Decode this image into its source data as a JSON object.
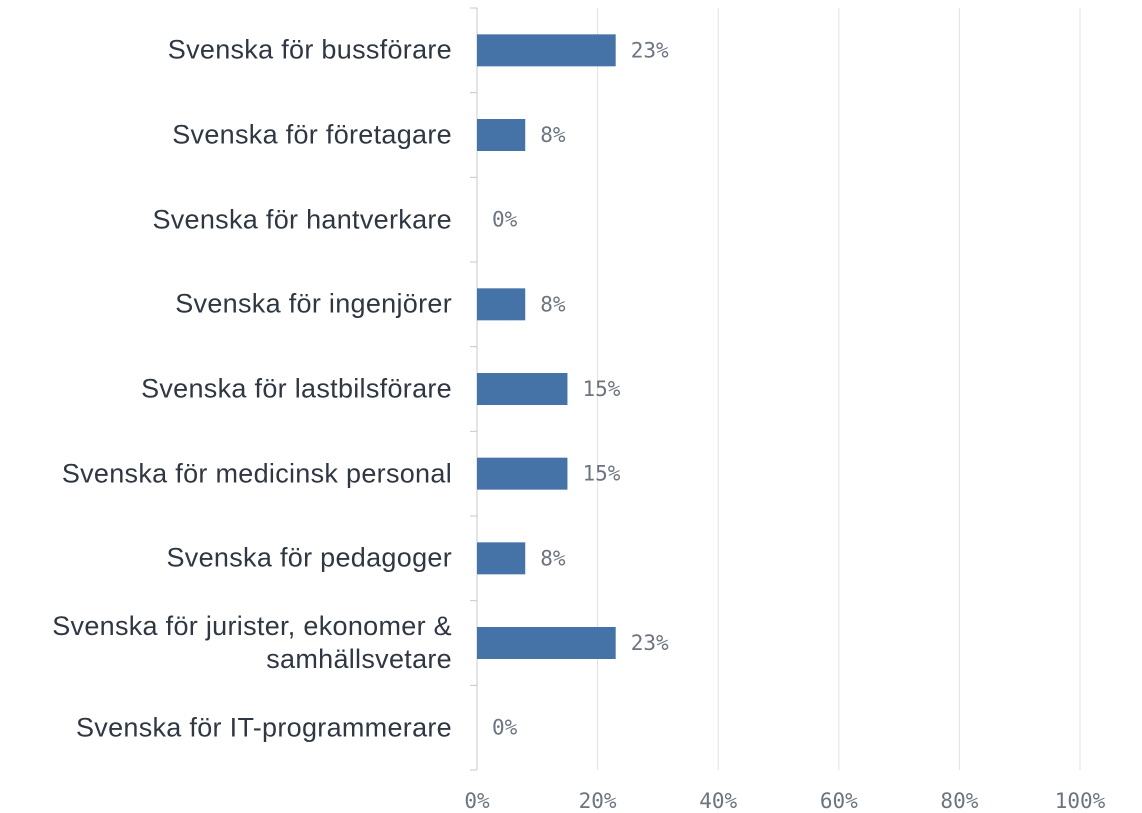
{
  "chart_data": {
    "type": "bar",
    "orientation": "horizontal",
    "categories": [
      "Svenska för bussförare",
      "Svenska för företagare",
      "Svenska för hantverkare",
      "Svenska för ingenjörer",
      "Svenska för lastbilsförare",
      "Svenska för medicinsk personal",
      "Svenska för pedagoger",
      "Svenska för jurister, ekonomer & samhällsvetare",
      "Svenska för IT-programmerare"
    ],
    "values": [
      23,
      8,
      0,
      8,
      15,
      15,
      8,
      23,
      0
    ],
    "value_labels": [
      "23%",
      "8%",
      "0%",
      "8%",
      "15%",
      "15%",
      "8%",
      "23%",
      "0%"
    ],
    "color": "#4573a8",
    "xlim": [
      0,
      100
    ],
    "xticks": [
      {
        "value": 0,
        "label": "0%"
      },
      {
        "value": 20,
        "label": "20%"
      },
      {
        "value": 40,
        "label": "40%"
      },
      {
        "value": 60,
        "label": "60%"
      },
      {
        "value": 80,
        "label": "80%"
      },
      {
        "value": 100,
        "label": "100%"
      }
    ],
    "grid": true
  }
}
